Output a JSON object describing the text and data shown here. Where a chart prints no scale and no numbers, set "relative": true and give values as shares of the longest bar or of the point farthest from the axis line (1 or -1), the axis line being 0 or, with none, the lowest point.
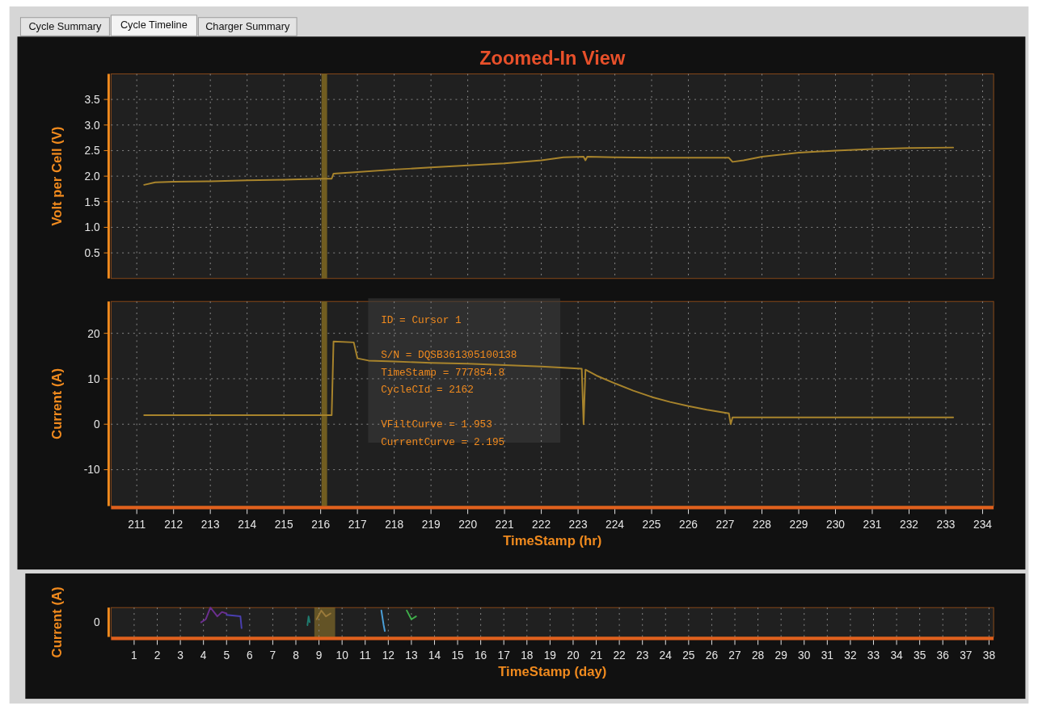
{
  "chart_data": [
    {
      "type": "other",
      "annotations": [
        "Cycle Summary",
        "Cycle Timeline",
        "Charger Summary"
      ]
    },
    {
      "type": "line",
      "title": "Zoomed-In View",
      "ylabel": "Volt per Cell (V)",
      "tick_labels": "y",
      "grid": true,
      "marker": "none",
      "line_style": "solid",
      "xlim": [
        210.3,
        234.3
      ],
      "xticks": [
        211,
        212,
        213,
        214,
        215,
        216,
        217,
        218,
        219,
        220,
        221,
        222,
        223,
        224,
        225,
        226,
        227,
        228,
        229,
        230,
        231,
        232,
        233,
        234
      ],
      "ylim": [
        0,
        4
      ],
      "yticks": [
        {
          "value": 0.5,
          "label": "0.5"
        },
        {
          "value": 1,
          "label": "1.0"
        },
        {
          "value": 1.5,
          "label": "1.5"
        },
        {
          "value": 2,
          "label": "2.0"
        },
        {
          "value": 2.5,
          "label": "2.5"
        },
        {
          "value": 3,
          "label": "3.0"
        },
        {
          "value": 3.5,
          "label": "3.5"
        }
      ],
      "ref_lines": [
        {
          "axis": "x",
          "value": 216.1,
          "color": "#7a6420"
        }
      ],
      "series": [
        {
          "color": "#a8842c",
          "x": [
            211.2,
            211.5,
            212,
            213,
            214,
            215,
            216,
            216.3,
            216.35,
            217,
            218,
            219,
            220,
            221,
            222,
            222.6,
            223.15,
            223.2,
            223.25,
            224,
            225,
            226,
            227.1,
            227.2,
            227.5,
            228,
            228.5,
            229,
            230,
            231,
            232,
            233.2
          ],
          "values": [
            1.83,
            1.88,
            1.89,
            1.9,
            1.92,
            1.93,
            1.95,
            1.95,
            2.05,
            2.08,
            2.13,
            2.17,
            2.21,
            2.25,
            2.31,
            2.37,
            2.38,
            2.31,
            2.38,
            2.37,
            2.36,
            2.36,
            2.36,
            2.28,
            2.31,
            2.38,
            2.42,
            2.46,
            2.5,
            2.53,
            2.55,
            2.56
          ]
        }
      ]
    },
    {
      "type": "line",
      "xlabel": "TimeStamp (hr)",
      "ylabel": "Current (A)",
      "grid": true,
      "marker": "none",
      "line_style": "solid",
      "xlim": [
        210.3,
        234.3
      ],
      "xticks": [
        211,
        212,
        213,
        214,
        215,
        216,
        217,
        218,
        219,
        220,
        221,
        222,
        223,
        224,
        225,
        226,
        227,
        228,
        229,
        230,
        231,
        232,
        233,
        234
      ],
      "ylim": [
        -18,
        27
      ],
      "yticks": [
        -10,
        0,
        10,
        20
      ],
      "ref_lines": [
        {
          "axis": "x",
          "value": 216.1,
          "color": "#7a6420"
        }
      ],
      "annotations": [
        "ID = Cursor 1",
        "S/N = DQSB361305100138",
        "TimeStamp = 777854.8",
        "CycleCId = 2162",
        "VFiltCurve = 1.953",
        "CurrentCurve = 2.195"
      ],
      "series": [
        {
          "color": "#a8842c",
          "x": [
            211.2,
            216.3,
            216.35,
            216.9,
            217.0,
            217.3,
            218,
            219,
            220,
            221,
            222,
            223.1,
            223.15,
            223.2,
            223.5,
            224,
            224.5,
            225,
            225.5,
            226,
            226.5,
            227.1,
            227.15,
            227.2,
            233.2
          ],
          "values": [
            2,
            2,
            18.2,
            18,
            14.5,
            14,
            13.8,
            13.5,
            13.3,
            13,
            12.7,
            12.2,
            0,
            12,
            10.7,
            9,
            7.4,
            6,
            4.9,
            4,
            3.2,
            2.4,
            0,
            1.5,
            1.5
          ]
        }
      ]
    },
    {
      "type": "line",
      "xlabel": "TimeStamp (day)",
      "ylabel": "Current (A)",
      "relative": true,
      "grid": true,
      "marker": "none",
      "line_style": "solid",
      "annotations": [
        "0"
      ],
      "xlim": [
        0,
        38.2
      ],
      "xticks": [
        1,
        2,
        3,
        4,
        5,
        6,
        7,
        8,
        9,
        10,
        11,
        12,
        13,
        14,
        15,
        16,
        17,
        18,
        19,
        20,
        21,
        22,
        23,
        24,
        25,
        26,
        27,
        28,
        29,
        30,
        31,
        32,
        33,
        34,
        35,
        36,
        37,
        38
      ],
      "bands": [
        {
          "axis": "x",
          "from": 8.8,
          "to": 9.7,
          "color": "#c8a030"
        }
      ],
      "series": [
        {
          "color": "#6b2f8f",
          "x": [
            3.9,
            4.1,
            4.3,
            4.5,
            4.6,
            4.8,
            5.0
          ],
          "values": [
            0.5,
            0.6,
            1,
            0.8,
            0.7,
            0.85,
            0.8
          ]
        },
        {
          "color": "#4a3fb0",
          "x": [
            5.0,
            5.6,
            5.65
          ],
          "values": [
            0.75,
            0.7,
            0.3
          ]
        },
        {
          "color": "#1f7a6e",
          "x": [
            8.5,
            8.55,
            8.6
          ],
          "values": [
            0.4,
            0.7,
            0.5
          ]
        },
        {
          "color": "#9a7a3a",
          "x": [
            8.9,
            9.1,
            9.3,
            9.5
          ],
          "values": [
            0.6,
            0.9,
            0.7,
            0.8
          ]
        },
        {
          "color": "#4a9fd8",
          "x": [
            11.7,
            11.8,
            11.85
          ],
          "values": [
            0.9,
            0.4,
            0.2
          ]
        },
        {
          "color": "#3fae4a",
          "x": [
            12.8,
            13.0,
            13.2
          ],
          "values": [
            0.9,
            0.6,
            0.7
          ]
        }
      ]
    }
  ]
}
